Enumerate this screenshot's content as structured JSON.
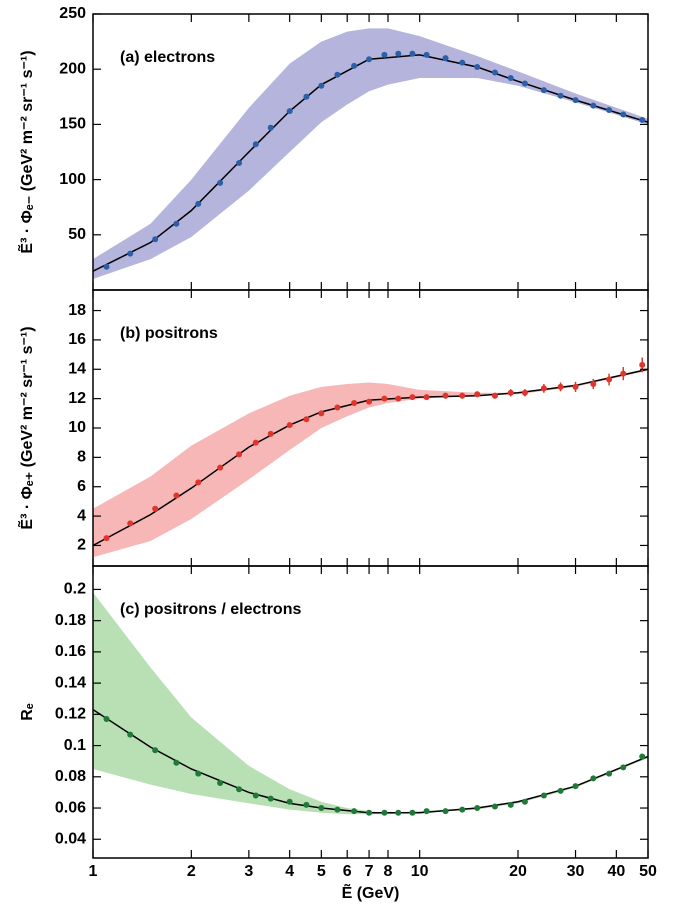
{
  "chart_data": [
    {
      "type": "scatter",
      "annotation": "(a) electrons",
      "ylabel": "Ẽ³ · Φₑ₋ (GeV² m⁻² sr⁻¹ s⁻¹)",
      "xscale": "log",
      "xlim": [
        1,
        50
      ],
      "xticks": [
        1,
        2,
        3,
        4,
        5,
        6,
        7,
        8,
        10,
        20,
        30,
        40,
        50
      ],
      "ylim": [
        0,
        250
      ],
      "yticks": [
        50,
        100,
        150,
        200,
        250
      ],
      "band": {
        "color": "#b4b4dc",
        "x": [
          1,
          1.5,
          2,
          3,
          4,
          5,
          6,
          7,
          8,
          10,
          15,
          20,
          30,
          50
        ],
        "upper": [
          28,
          60,
          100,
          165,
          205,
          225,
          234,
          237,
          237,
          230,
          212,
          198,
          178,
          155
        ],
        "lower": [
          10,
          28,
          48,
          90,
          125,
          152,
          168,
          180,
          186,
          192,
          192,
          185,
          170,
          150
        ]
      },
      "fit": {
        "color": "#000000",
        "x": [
          1,
          1.5,
          2,
          3,
          4,
          5,
          7,
          10,
          15,
          20,
          30,
          50
        ],
        "values": [
          17,
          43,
          72,
          125,
          162,
          186,
          209,
          213,
          202,
          189,
          172,
          152
        ]
      },
      "points": {
        "color": "#2c5fa8",
        "x": [
          1.1,
          1.3,
          1.55,
          1.8,
          2.1,
          2.45,
          2.8,
          3.15,
          3.5,
          4,
          4.5,
          5,
          5.6,
          6.3,
          7,
          7.8,
          8.6,
          9.5,
          10.5,
          12,
          13.5,
          15,
          17,
          19,
          21,
          24,
          27,
          30,
          34,
          38,
          42,
          48
        ],
        "values": [
          21,
          33,
          46,
          60,
          78,
          97,
          115,
          132,
          147,
          162,
          175,
          185,
          195,
          203,
          209,
          213,
          214,
          214,
          213,
          210,
          206,
          202,
          197,
          192,
          187,
          181,
          176,
          172,
          167,
          163,
          159,
          154
        ]
      }
    },
    {
      "type": "scatter",
      "annotation": "(b) positrons",
      "ylabel": "Ẽ³ · Φₑ₊ (GeV² m⁻² sr⁻¹ s⁻¹)",
      "xscale": "log",
      "xlim": [
        1,
        50
      ],
      "xticks": [
        1,
        2,
        3,
        4,
        5,
        6,
        7,
        8,
        10,
        20,
        30,
        40,
        50
      ],
      "ylim": [
        0.6,
        19.4
      ],
      "yticks": [
        2,
        4,
        6,
        8,
        10,
        12,
        14,
        16,
        18
      ],
      "band": {
        "color": "#f7b7b7",
        "x": [
          1,
          1.5,
          2,
          3,
          4,
          5,
          6,
          7,
          8,
          10,
          15,
          20,
          30,
          50
        ],
        "upper": [
          4.5,
          6.7,
          8.8,
          11.0,
          12.2,
          12.8,
          13.0,
          13.1,
          13.0,
          12.6,
          12.4,
          12.4,
          12.9,
          14.0
        ],
        "lower": [
          1.2,
          2.3,
          3.8,
          6.5,
          8.5,
          10.0,
          10.8,
          11.4,
          11.7,
          12.0,
          12.2,
          12.3,
          12.8,
          13.9
        ]
      },
      "fit": {
        "color": "#000000",
        "x": [
          1,
          1.5,
          2,
          3,
          4,
          5,
          7,
          10,
          15,
          20,
          30,
          50
        ],
        "values": [
          2.0,
          4.1,
          5.9,
          8.7,
          10.2,
          11.1,
          11.9,
          12.1,
          12.2,
          12.4,
          12.9,
          14.0
        ]
      },
      "points": {
        "color": "#e0352b",
        "x": [
          1.1,
          1.3,
          1.55,
          1.8,
          2.1,
          2.45,
          2.8,
          3.15,
          3.5,
          4,
          4.5,
          5,
          5.6,
          6.3,
          7,
          7.8,
          8.6,
          9.5,
          10.5,
          12,
          13.5,
          15,
          17,
          19,
          21,
          24,
          27,
          30,
          34,
          38,
          42,
          48
        ],
        "values": [
          2.5,
          3.5,
          4.5,
          5.4,
          6.3,
          7.3,
          8.2,
          9.0,
          9.6,
          10.2,
          10.6,
          11.0,
          11.4,
          11.7,
          11.8,
          12.0,
          12.0,
          12.1,
          12.1,
          12.2,
          12.2,
          12.3,
          12.2,
          12.4,
          12.4,
          12.7,
          12.8,
          12.8,
          13.0,
          13.3,
          13.7,
          14.3
        ],
        "errors": [
          0.1,
          0.1,
          0.1,
          0.1,
          0.1,
          0.1,
          0.1,
          0.1,
          0.1,
          0.1,
          0.1,
          0.1,
          0.1,
          0.1,
          0.15,
          0.15,
          0.15,
          0.15,
          0.15,
          0.2,
          0.2,
          0.2,
          0.2,
          0.25,
          0.25,
          0.3,
          0.3,
          0.35,
          0.35,
          0.4,
          0.45,
          0.5
        ]
      }
    },
    {
      "type": "scatter",
      "annotation": "(c) positrons / electrons",
      "ylabel": "Rₑ",
      "xlabel": "Ẽ (GeV)",
      "xscale": "log",
      "xlim": [
        1,
        50
      ],
      "xticks": [
        1,
        2,
        3,
        4,
        5,
        6,
        7,
        8,
        10,
        20,
        30,
        40,
        50
      ],
      "ylim": [
        0.028,
        0.215
      ],
      "yticks": [
        0.04,
        0.06,
        0.08,
        0.1,
        0.12,
        0.14,
        0.16,
        0.18,
        0.2
      ],
      "band": {
        "color": "#b9dfb5",
        "x": [
          1,
          1.5,
          2,
          3,
          4,
          5,
          6,
          7,
          8,
          10,
          15,
          20,
          30,
          50
        ],
        "upper": [
          0.198,
          0.15,
          0.118,
          0.087,
          0.072,
          0.064,
          0.06,
          0.058,
          0.057,
          0.058,
          0.06,
          0.064,
          0.074,
          0.093
        ],
        "lower": [
          0.085,
          0.075,
          0.069,
          0.063,
          0.059,
          0.057,
          0.056,
          0.056,
          0.056,
          0.057,
          0.059,
          0.063,
          0.073,
          0.092
        ]
      },
      "fit": {
        "color": "#000000",
        "x": [
          1,
          1.5,
          2,
          3,
          4,
          5,
          7,
          10,
          15,
          20,
          30,
          50
        ],
        "values": [
          0.123,
          0.099,
          0.085,
          0.07,
          0.063,
          0.06,
          0.057,
          0.057,
          0.06,
          0.064,
          0.074,
          0.093
        ]
      },
      "points": {
        "color": "#1f7a3a",
        "x": [
          1.1,
          1.3,
          1.55,
          1.8,
          2.1,
          2.45,
          2.8,
          3.15,
          3.5,
          4,
          4.5,
          5,
          5.6,
          6.3,
          7,
          7.8,
          8.6,
          9.5,
          10.5,
          12,
          13.5,
          15,
          17,
          19,
          21,
          24,
          27,
          30,
          34,
          38,
          42,
          48
        ],
        "values": [
          0.117,
          0.107,
          0.097,
          0.089,
          0.082,
          0.076,
          0.072,
          0.068,
          0.066,
          0.064,
          0.062,
          0.06,
          0.059,
          0.058,
          0.057,
          0.057,
          0.057,
          0.057,
          0.058,
          0.058,
          0.059,
          0.06,
          0.061,
          0.062,
          0.064,
          0.068,
          0.071,
          0.074,
          0.079,
          0.082,
          0.086,
          0.093
        ]
      }
    }
  ]
}
